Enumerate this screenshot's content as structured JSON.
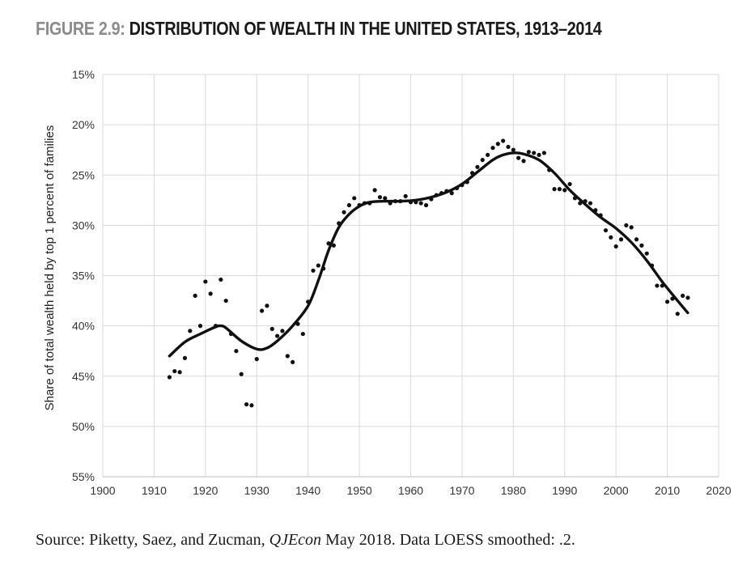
{
  "figure_prefix": "FIGURE 2.9:",
  "figure_title": "DISTRIBUTION OF WEALTH IN THE UNITED STATES, 1913–2014",
  "source_before": "Source: Piketty, Saez, and Zucman, ",
  "source_journal": "QJEcon",
  "source_after": " May 2018. Data LOESS smoothed: .2.",
  "chart_data": {
    "type": "scatter",
    "title": "DISTRIBUTION OF WEALTH IN THE UNITED STATES, 1913–2014",
    "xlabel": "",
    "ylabel": "Share of total wealth held by top 1 percent of families",
    "xlim": [
      1900,
      2020
    ],
    "ylim": [
      15,
      55
    ],
    "y_inverted": true,
    "grid": true,
    "legend": "none",
    "x_ticks": [
      "1900",
      "1910",
      "1920",
      "1930",
      "1940",
      "1950",
      "1960",
      "1970",
      "1980",
      "1990",
      "2000",
      "2010",
      "2020"
    ],
    "y_ticks": [
      "15%",
      "20%",
      "25%",
      "30%",
      "35%",
      "40%",
      "45%",
      "50%",
      "55%"
    ],
    "x_tick_values": [
      1900,
      1910,
      1920,
      1930,
      1940,
      1950,
      1960,
      1970,
      1980,
      1990,
      2000,
      2010,
      2020
    ],
    "y_tick_values": [
      15,
      20,
      25,
      30,
      35,
      40,
      45,
      50,
      55
    ],
    "series": [
      {
        "type": "scatter",
        "x": [
          1913,
          1914,
          1915,
          1916,
          1917,
          1918,
          1919,
          1920,
          1921,
          1922,
          1923,
          1924,
          1925,
          1926,
          1927,
          1928,
          1929,
          1930,
          1931,
          1932,
          1933,
          1934,
          1935,
          1936,
          1937,
          1938,
          1939,
          1940,
          1941,
          1942,
          1943,
          1944,
          1945,
          1946,
          1947,
          1948,
          1949,
          1950,
          1951,
          1952,
          1953,
          1954,
          1955,
          1956,
          1957,
          1958,
          1959,
          1960,
          1961,
          1962,
          1963,
          1964,
          1965,
          1966,
          1967,
          1968,
          1969,
          1970,
          1971,
          1972,
          1973,
          1974,
          1975,
          1976,
          1977,
          1978,
          1979,
          1980,
          1981,
          1982,
          1983,
          1984,
          1985,
          1986,
          1987,
          1988,
          1989,
          1990,
          1991,
          1992,
          1993,
          1994,
          1995,
          1996,
          1997,
          1998,
          1999,
          2000,
          2001,
          2002,
          2003,
          2004,
          2005,
          2006,
          2007,
          2008,
          2009,
          2010,
          2011,
          2012,
          2013,
          2014
        ],
        "y": [
          45.1,
          44.5,
          44.6,
          43.2,
          40.5,
          37.0,
          40.0,
          35.6,
          36.8,
          40.0,
          35.4,
          37.5,
          40.8,
          42.5,
          44.8,
          47.8,
          47.9,
          43.3,
          38.5,
          38.0,
          40.3,
          41.0,
          40.5,
          43.0,
          43.6,
          39.8,
          40.8,
          37.6,
          34.5,
          34.0,
          34.3,
          31.8,
          32.0,
          29.8,
          28.7,
          28.0,
          27.3,
          28.0,
          27.8,
          27.8,
          26.5,
          27.2,
          27.3,
          27.8,
          27.6,
          27.6,
          27.1,
          27.7,
          27.7,
          27.8,
          28.0,
          27.4,
          27.0,
          26.8,
          26.6,
          26.8,
          26.3,
          26.0,
          25.7,
          24.8,
          24.2,
          23.5,
          23.0,
          22.3,
          21.9,
          21.6,
          22.2,
          22.5,
          23.3,
          23.6,
          22.7,
          22.8,
          23.0,
          22.8,
          24.5,
          26.4,
          26.4,
          26.5,
          25.9,
          27.3,
          27.8,
          27.6,
          27.8,
          28.5,
          29.0,
          30.5,
          31.2,
          32.1,
          31.4,
          30.0,
          30.2,
          31.4,
          32.0,
          32.8,
          34.0,
          36.0,
          36.0,
          37.6,
          37.3,
          38.8,
          37.0,
          37.2
        ]
      },
      {
        "type": "line",
        "name": "",
        "x": [
          1913,
          1916,
          1919,
          1922,
          1923,
          1924,
          1927,
          1930,
          1932,
          1934,
          1937,
          1940,
          1942,
          1944,
          1946,
          1948,
          1950,
          1952,
          1955,
          1958,
          1961,
          1964,
          1967,
          1970,
          1973,
          1976,
          1978,
          1980,
          1982,
          1985,
          1988,
          1991,
          1994,
          1997,
          2000,
          2003,
          2006,
          2009,
          2012,
          2014
        ],
        "y": [
          43.0,
          41.6,
          40.8,
          40.1,
          40.0,
          40.2,
          41.5,
          42.3,
          42.2,
          41.5,
          40.0,
          38.0,
          35.5,
          32.5,
          30.2,
          28.9,
          28.1,
          27.7,
          27.6,
          27.6,
          27.5,
          27.2,
          26.7,
          25.9,
          24.7,
          23.5,
          23.0,
          22.8,
          22.9,
          23.5,
          24.8,
          26.5,
          27.9,
          29.2,
          30.3,
          31.7,
          33.5,
          35.6,
          37.5,
          38.7
        ]
      }
    ]
  }
}
